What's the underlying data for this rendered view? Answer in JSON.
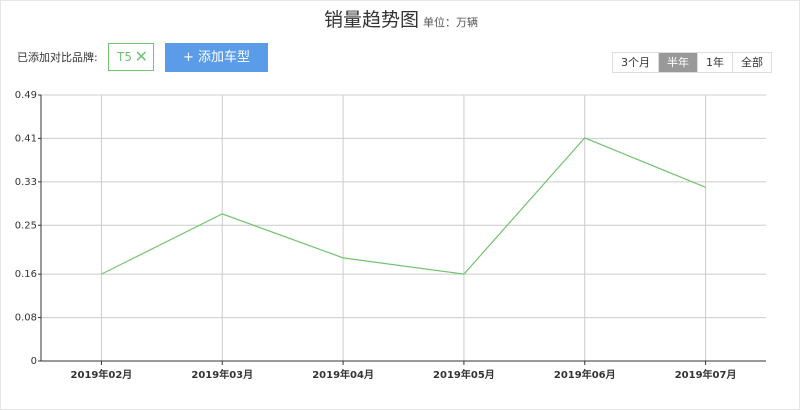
{
  "chart_data": {
    "type": "line",
    "title": "销量趋势图",
    "subtitle": "单位：万辆",
    "categories": [
      "2019年02月",
      "2019年03月",
      "2019年04月",
      "2019年05月",
      "2019年06月",
      "2019年07月"
    ],
    "values": [
      0.16,
      0.271,
      0.19,
      0.16,
      0.411,
      0.32
    ],
    "color": "#74c374",
    "ylim": [
      0,
      0.49
    ],
    "yticks": [
      0,
      0.08,
      0.16,
      0.25,
      0.33,
      0.41,
      0.49
    ],
    "grid": true
  },
  "controls": {
    "compare_label": "已添加对比品牌:",
    "brands": [
      "T5"
    ],
    "add_button": "+ 添加车型",
    "ranges": [
      "3个月",
      "半年",
      "1年",
      "全部"
    ],
    "active_range": 1
  }
}
